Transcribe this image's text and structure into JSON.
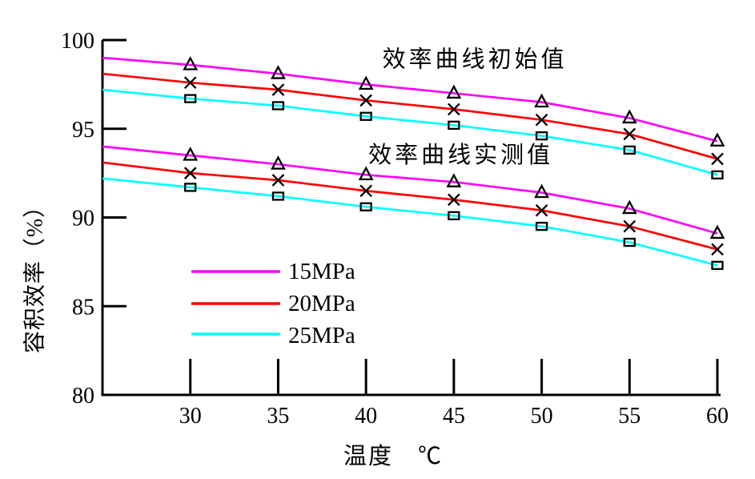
{
  "chart_data": {
    "type": "line",
    "title": "",
    "xlabel": "温度　℃",
    "ylabel": "容积效率（%）",
    "xlim": [
      25,
      60
    ],
    "ylim": [
      80,
      100
    ],
    "x_ticks": [
      30,
      35,
      40,
      45,
      50,
      55,
      60
    ],
    "y_ticks": [
      100,
      95,
      90,
      85,
      80
    ],
    "grid": false,
    "axis_color": "#000000",
    "marker_color": "#000000",
    "x": [
      25,
      30,
      35,
      40,
      45,
      50,
      55,
      60
    ],
    "groups": [
      {
        "label": "效率曲线初始值",
        "series": [
          {
            "name": "15MPa",
            "color": "#ff00ff",
            "marker": "triangle",
            "values": [
              99.0,
              98.6,
              98.1,
              97.5,
              97.0,
              96.5,
              95.6,
              94.3
            ]
          },
          {
            "name": "20MPa",
            "color": "#ff0000",
            "marker": "x",
            "values": [
              98.1,
              97.6,
              97.2,
              96.6,
              96.1,
              95.5,
              94.7,
              93.3
            ]
          },
          {
            "name": "25MPa",
            "color": "#00ffff",
            "marker": "square",
            "values": [
              97.2,
              96.7,
              96.3,
              95.7,
              95.2,
              94.6,
              93.8,
              92.4
            ]
          }
        ]
      },
      {
        "label": "效率曲线实测值",
        "series": [
          {
            "name": "15MPa",
            "color": "#ff00ff",
            "marker": "triangle",
            "values": [
              94.0,
              93.5,
              93.0,
              92.4,
              92.0,
              91.4,
              90.5,
              89.1
            ]
          },
          {
            "name": "20MPa",
            "color": "#ff0000",
            "marker": "x",
            "values": [
              93.1,
              92.5,
              92.1,
              91.5,
              91.0,
              90.4,
              89.5,
              88.2
            ]
          },
          {
            "name": "25MPa",
            "color": "#00ffff",
            "marker": "square",
            "values": [
              92.2,
              91.7,
              91.2,
              90.6,
              90.1,
              89.5,
              88.6,
              87.3
            ]
          }
        ]
      }
    ],
    "annotations": [
      {
        "text": "效率曲线初始值",
        "x": 46.2,
        "y": 98.9
      },
      {
        "text": "效率曲线实测值",
        "x": 45.4,
        "y": 93.5
      }
    ],
    "legend": {
      "position": "inside-lower-left",
      "text_color": "#ff00ff",
      "items": [
        {
          "label": "15MPa",
          "color": "#ff00ff"
        },
        {
          "label": "20MPa",
          "color": "#ff0000"
        },
        {
          "label": "25MPa",
          "color": "#00ffff"
        }
      ]
    }
  }
}
